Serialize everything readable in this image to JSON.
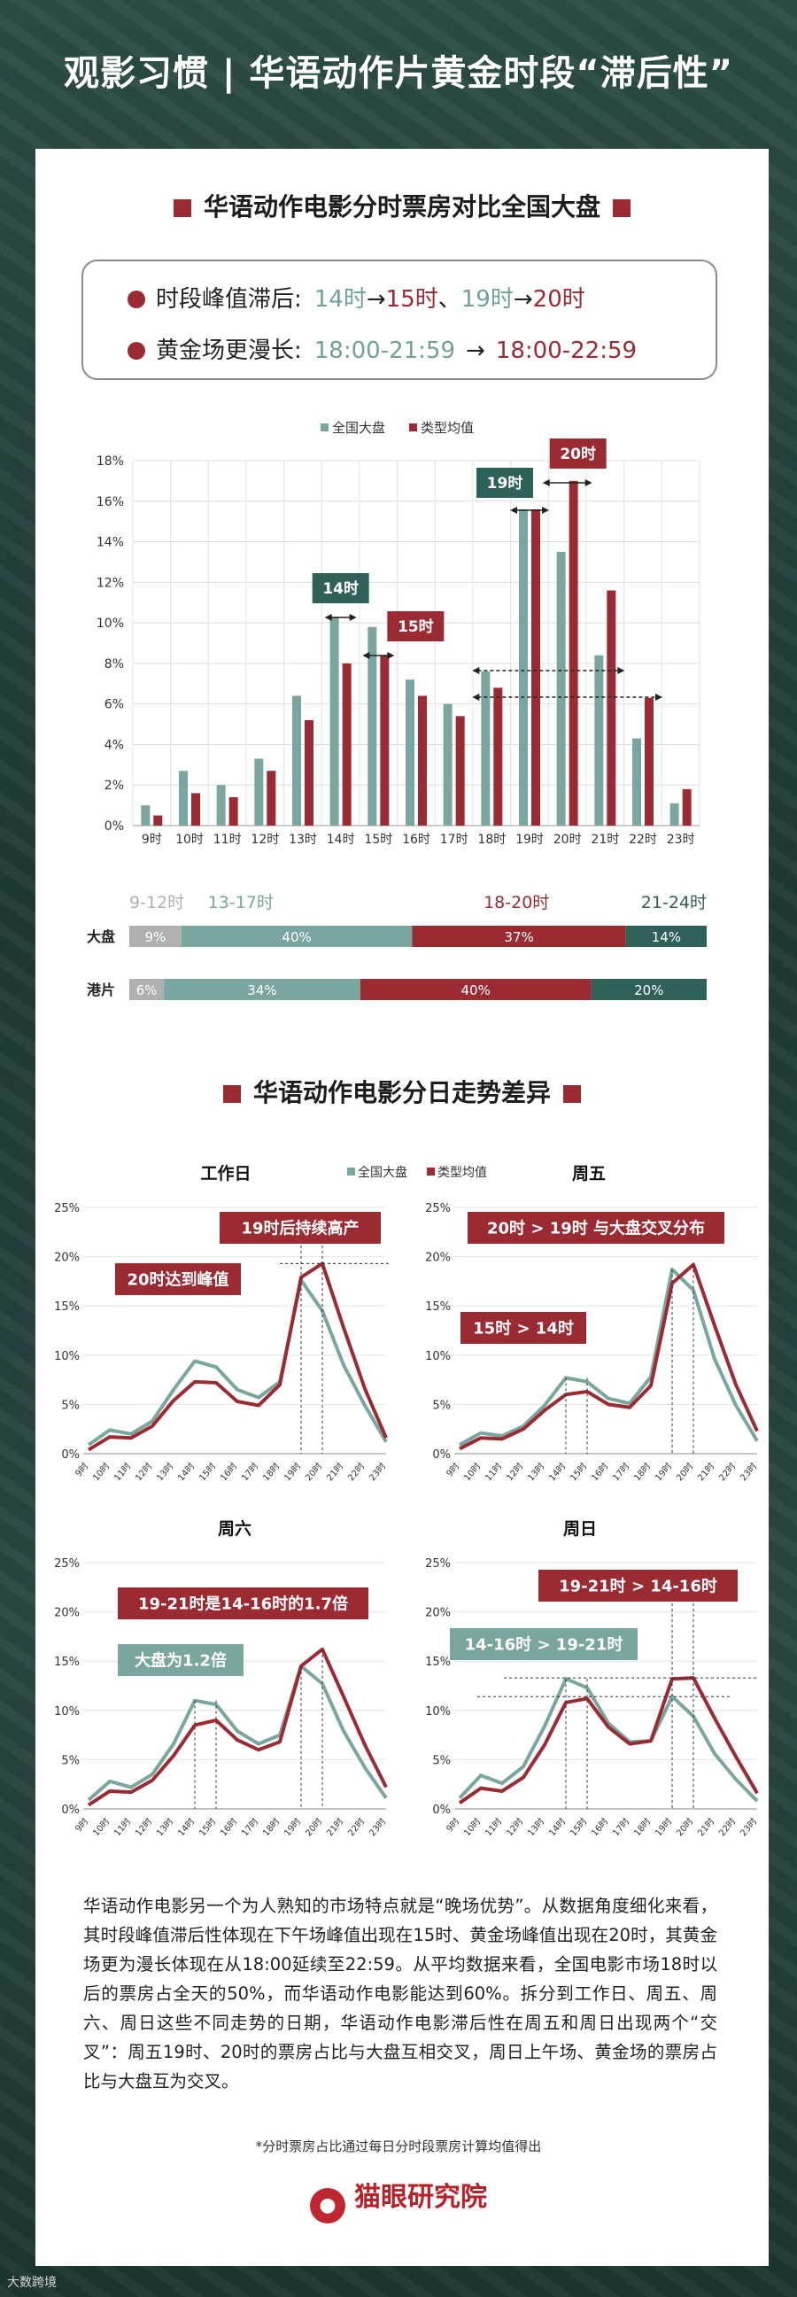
{
  "header": {
    "title": "观影习惯 | 华语动作片黄金时段“滞后性”"
  },
  "section1": {
    "title": "华语动作电影分时票房对比全国大盘"
  },
  "notes": [
    {
      "label": "时段峰值滞后:",
      "a": "14时",
      "b": "15时",
      "sep": "、",
      "c": "19时",
      "d": "20时"
    },
    {
      "label": "黄金场更漫长:",
      "a": "18:00-21:59",
      "b": "18:00-22:59"
    }
  ],
  "legend": {
    "market": "全国大盘",
    "genre": "类型均值"
  },
  "colors": {
    "market": "#7aa69f",
    "genre": "#9b2b33",
    "dark": "#2f6159",
    "grey": "#b0b0b0"
  },
  "chart_data": [
    {
      "type": "bar",
      "categories": [
        "9时",
        "10时",
        "11时",
        "12时",
        "13时",
        "14时",
        "15时",
        "16时",
        "17时",
        "18时",
        "19时",
        "20时",
        "21时",
        "22时",
        "23时"
      ],
      "series": [
        {
          "name": "全国大盘",
          "values": [
            1.0,
            2.7,
            2.0,
            3.3,
            6.4,
            10.3,
            9.8,
            7.2,
            6.0,
            7.6,
            15.6,
            13.5,
            8.4,
            4.3,
            1.1
          ]
        },
        {
          "name": "类型均值",
          "values": [
            0.5,
            1.6,
            1.4,
            2.7,
            5.2,
            8.0,
            8.4,
            6.4,
            5.4,
            6.8,
            15.6,
            17.0,
            11.6,
            6.3,
            1.8
          ]
        }
      ],
      "ylim": [
        0,
        18
      ],
      "yticks": [
        "0%",
        "2%",
        "4%",
        "6%",
        "8%",
        "10%",
        "12%",
        "14%",
        "16%",
        "18%"
      ],
      "annotations": [
        {
          "text": "14时",
          "style": "dark"
        },
        {
          "text": "15时",
          "style": "red"
        },
        {
          "text": "19时",
          "style": "dark"
        },
        {
          "text": "20时",
          "style": "red"
        }
      ]
    },
    {
      "type": "bar",
      "orientation": "horizontal-stacked",
      "groups": [
        "9-12时",
        "13-17时",
        "18-20时",
        "21-24时"
      ],
      "rows": [
        {
          "label": "大盘",
          "values": [
            9,
            40,
            37,
            14
          ],
          "labels": [
            "9%",
            "40%",
            "37%",
            "14%"
          ]
        },
        {
          "label": "港片",
          "values": [
            6,
            34,
            40,
            20
          ],
          "labels": [
            "6%",
            "34%",
            "40%",
            "20%"
          ]
        }
      ]
    },
    {
      "type": "line",
      "title": "工作日",
      "x": [
        "9时",
        "10时",
        "11时",
        "12时",
        "13时",
        "14时",
        "15时",
        "16时",
        "17时",
        "18时",
        "19时",
        "20时",
        "21时",
        "22时",
        "23时"
      ],
      "series": [
        {
          "name": "全国大盘",
          "values": [
            0.9,
            2.4,
            2.0,
            3.3,
            6.5,
            9.4,
            8.8,
            6.5,
            5.7,
            7.3,
            17.6,
            14.5,
            9.0,
            4.9,
            1.2
          ]
        },
        {
          "name": "类型均值",
          "values": [
            0.4,
            1.7,
            1.6,
            2.8,
            5.4,
            7.3,
            7.2,
            5.3,
            4.9,
            7.0,
            17.9,
            19.3,
            12.8,
            6.6,
            1.6
          ]
        }
      ],
      "ylim": [
        0,
        25
      ],
      "yticks": [
        "0%",
        "5%",
        "10%",
        "15%",
        "20%",
        "25%"
      ],
      "annotations": [
        "19时后持续高产",
        "20时达到峰值"
      ]
    },
    {
      "type": "line",
      "title": "周五",
      "x": [
        "9时",
        "10时",
        "11时",
        "12时",
        "13时",
        "14时",
        "15时",
        "16时",
        "17时",
        "18时",
        "19时",
        "20时",
        "21时",
        "22时",
        "23时"
      ],
      "series": [
        {
          "name": "全国大盘",
          "values": [
            0.9,
            2.1,
            1.8,
            2.8,
            4.9,
            7.7,
            7.3,
            5.6,
            5.1,
            7.8,
            18.7,
            16.6,
            9.6,
            4.9,
            1.3
          ]
        },
        {
          "name": "类型均值",
          "values": [
            0.5,
            1.6,
            1.5,
            2.5,
            4.4,
            6.0,
            6.3,
            5.0,
            4.7,
            6.9,
            17.3,
            19.2,
            13.0,
            7.0,
            2.3
          ]
        }
      ],
      "ylim": [
        0,
        25
      ],
      "yticks": [
        "0%",
        "5%",
        "10%",
        "15%",
        "20%",
        "25%"
      ],
      "annotations": [
        "20时 > 19时 与大盘交叉分布",
        "15时 > 14时"
      ]
    },
    {
      "type": "line",
      "title": "周六",
      "x": [
        "9时",
        "10时",
        "11时",
        "12时",
        "13时",
        "14时",
        "15时",
        "16时",
        "17时",
        "18时",
        "19时",
        "20时",
        "21时",
        "22时",
        "23时"
      ],
      "series": [
        {
          "name": "全国大盘",
          "values": [
            0.9,
            2.8,
            2.2,
            3.5,
            6.6,
            11.0,
            10.6,
            7.9,
            6.6,
            7.5,
            14.5,
            12.7,
            7.9,
            4.2,
            1.1
          ]
        },
        {
          "name": "类型均值",
          "values": [
            0.4,
            1.8,
            1.7,
            2.9,
            5.4,
            8.5,
            9.0,
            7.0,
            6.0,
            6.8,
            14.5,
            16.2,
            11.4,
            6.5,
            2.2
          ]
        }
      ],
      "ylim": [
        0,
        25
      ],
      "yticks": [
        "0%",
        "5%",
        "10%",
        "15%",
        "20%",
        "25%"
      ],
      "annotations": [
        "19-21时是14-16时的1.7倍",
        "大盘为1.2倍"
      ]
    },
    {
      "type": "line",
      "title": "周日",
      "x": [
        "9时",
        "10时",
        "11时",
        "12时",
        "13时",
        "14时",
        "15时",
        "16时",
        "17时",
        "18时",
        "19时",
        "20时",
        "21时",
        "22时",
        "23时"
      ],
      "series": [
        {
          "name": "全国大盘",
          "values": [
            1.1,
            3.4,
            2.6,
            4.3,
            8.4,
            13.2,
            12.3,
            8.7,
            6.8,
            6.9,
            11.4,
            9.4,
            5.6,
            3.0,
            0.8
          ]
        },
        {
          "name": "类型均值",
          "values": [
            0.6,
            2.1,
            1.8,
            3.2,
            6.5,
            10.8,
            11.2,
            8.3,
            6.6,
            6.9,
            13.2,
            13.3,
            9.2,
            5.3,
            1.6
          ]
        }
      ],
      "ylim": [
        0,
        25
      ],
      "yticks": [
        "0%",
        "5%",
        "10%",
        "15%",
        "20%",
        "25%"
      ],
      "annotations": [
        "19-21时 > 14-16时",
        "14-16时 > 19-21时"
      ]
    }
  ],
  "section2": {
    "title": "华语动作电影分日走势差异"
  },
  "paragraph": "华语动作电影另一个为人熟知的市场特点就是“晚场优势”。从数据角度细化来看，其时段峰值滞后性体现在下午场峰值出现在15时、黄金场峰值出现在20时，其黄金场更为漫长体现在从18:00延续至22:59。从平均数据来看，全国电影市场18时以后的票房占全天的50%，而华语动作电影能达到60%。拆分到工作日、周五、周六、周日这些不同走势的日期，华语动作电影滞后性在周五和周日出现两个“交叉”：周五19时、20时的票房占比与大盘互相交叉，周日上午场、黄金场的票房占比与大盘互为交叉。",
  "footnote": "*分时票房占比通过每日分时段票房计算均值得出",
  "logo": {
    "text": "猫眼研究院",
    "icon": "cat-logo-icon"
  },
  "watermark": "大数跨境"
}
